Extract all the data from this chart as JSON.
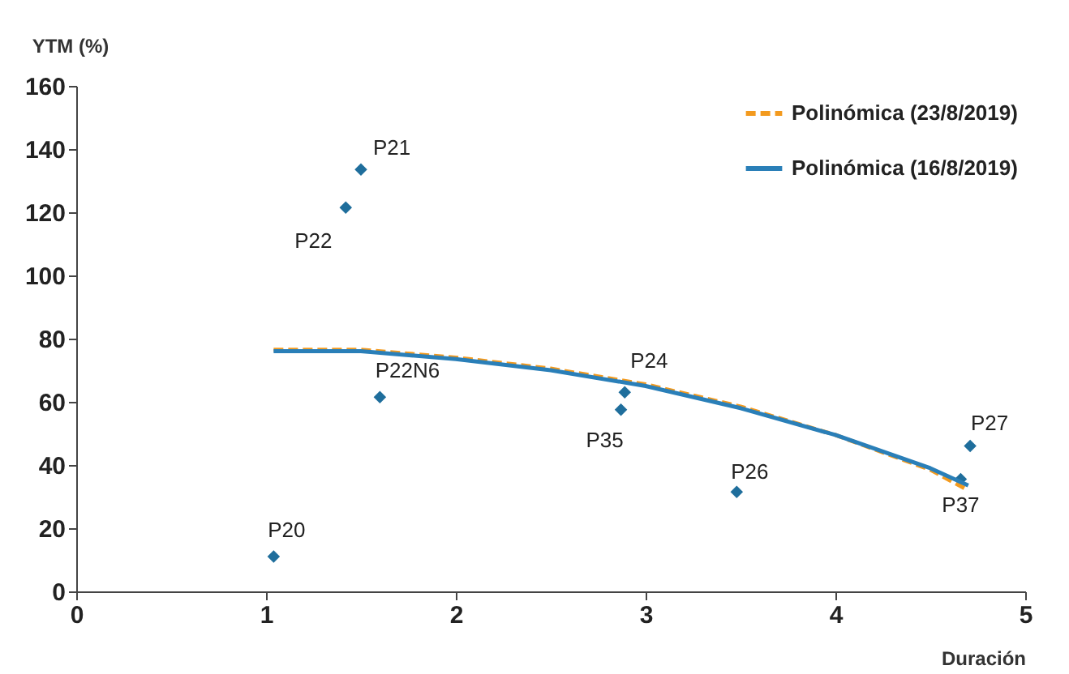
{
  "chart_data": {
    "type": "scatter",
    "xlabel": "Duración",
    "ylabel": "YTM (%)",
    "xlim": [
      0,
      5
    ],
    "xticks": [
      0,
      1,
      2,
      3,
      4,
      5
    ],
    "ylim": [
      0,
      160
    ],
    "yticks": [
      0,
      20,
      40,
      60,
      80,
      100,
      120,
      140,
      160
    ],
    "grid": false,
    "legend": "top right",
    "series": [
      {
        "color": "#1f6e9c",
        "marker": "diamond",
        "x": [
          1.5,
          1.42,
          1.6,
          2.89,
          2.87,
          3.48,
          4.71,
          4.66,
          1.04
        ],
        "values": [
          133.5,
          121.5,
          61.5,
          63,
          57.5,
          31.5,
          46,
          35.5,
          11
        ]
      },
      {
        "type": "line",
        "name": "Polinómica (23/8/2019)",
        "color": "#f39a1e",
        "line_style": "dashed",
        "marker": "none",
        "x": [
          1.04,
          1.5,
          2,
          2.5,
          3,
          3.5,
          4,
          4.5,
          4.7
        ],
        "values": [
          76.5,
          76.5,
          74,
          70.5,
          65.5,
          58.5,
          49.5,
          38.5,
          32
        ]
      },
      {
        "type": "line",
        "name": "Polinómica (16/8/2019)",
        "color": "#2a7fb8",
        "line_style": "solid",
        "marker": "none",
        "x": [
          1.04,
          1.5,
          2,
          2.5,
          3,
          3.5,
          4,
          4.5,
          4.7
        ],
        "values": [
          76,
          76,
          73.5,
          70,
          65,
          58,
          49.5,
          39,
          33.5
        ]
      }
    ],
    "annotations": [
      {
        "text": "P21",
        "x": 1.5,
        "y": 133.5
      },
      {
        "text": "P22",
        "x": 1.42,
        "y": 121.5
      },
      {
        "text": "P22N6",
        "x": 1.6,
        "y": 61.5
      },
      {
        "text": "P24",
        "x": 2.89,
        "y": 63
      },
      {
        "text": "P35",
        "x": 2.87,
        "y": 57.5
      },
      {
        "text": "P26",
        "x": 3.48,
        "y": 31.5
      },
      {
        "text": "P27",
        "x": 4.71,
        "y": 46
      },
      {
        "text": "P37",
        "x": 4.66,
        "y": 35.5
      },
      {
        "text": "P20",
        "x": 1.04,
        "y": 11
      }
    ]
  }
}
